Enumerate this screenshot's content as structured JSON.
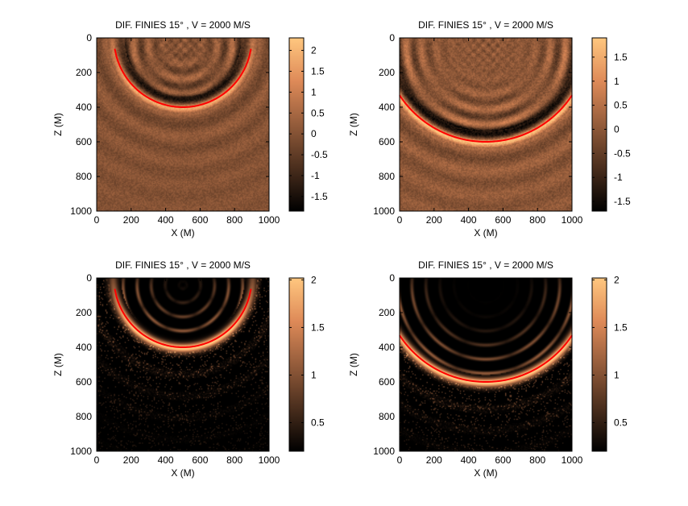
{
  "figure": {
    "background": "#ffffff",
    "colormap": "copper",
    "colormap_stops": [
      "#000000",
      "#4a2e1d",
      "#945c3b",
      "#de8a58",
      "#ffc77f"
    ],
    "curve_color": "#ff0000"
  },
  "chart_data": [
    {
      "type": "heatmap",
      "title": "DIF. FINIES 15° , V = 2000 M/S",
      "xlabel": "X (M)",
      "ylabel": "Z (M)",
      "xlim": [
        0,
        1000
      ],
      "ylim": [
        0,
        1000
      ],
      "y_reversed": true,
      "xticks": [
        "0",
        "200",
        "400",
        "600",
        "800",
        "1000"
      ],
      "yticks": [
        "0",
        "200",
        "400",
        "600",
        "800",
        "1000"
      ],
      "colorbar": {
        "range": [
          -1.85,
          2.3
        ],
        "ticks": [
          "-1.5",
          "-1",
          "-0.5",
          "0",
          "0.5",
          "1",
          "1.5",
          "2"
        ],
        "tick_values": [
          -1.5,
          -1,
          -0.5,
          0,
          0.5,
          1,
          1.5,
          2
        ]
      },
      "field": {
        "mode": "signed",
        "front_radius": 400,
        "source": [
          500,
          40
        ]
      },
      "curve": {
        "center": [
          500,
          0
        ],
        "radius": 400,
        "x_range": [
          105,
          895
        ]
      }
    },
    {
      "type": "heatmap",
      "title": "DIF. FINIES 15° , V = 2000 M/S",
      "xlabel": "X (M)",
      "ylabel": "Z (M)",
      "xlim": [
        0,
        1000
      ],
      "ylim": [
        0,
        1000
      ],
      "y_reversed": true,
      "xticks": [
        "0",
        "200",
        "400",
        "600",
        "800",
        "1000"
      ],
      "yticks": [
        "0",
        "200",
        "400",
        "600",
        "800",
        "1000"
      ],
      "colorbar": {
        "range": [
          -1.7,
          1.9
        ],
        "ticks": [
          "-1.5",
          "-1",
          "-0.5",
          "0",
          "0.5",
          "1",
          "1.5"
        ],
        "tick_values": [
          -1.5,
          -1,
          -0.5,
          0,
          0.5,
          1,
          1.5
        ]
      },
      "field": {
        "mode": "signed",
        "front_radius": 600,
        "source": [
          500,
          40
        ]
      },
      "curve": {
        "center": [
          500,
          0
        ],
        "radius": 600,
        "x_range": [
          0,
          1000
        ]
      }
    },
    {
      "type": "heatmap",
      "title": "DIF. FINIES 15° , V = 2000 M/S",
      "xlabel": "X (M)",
      "ylabel": "Z (M)",
      "xlim": [
        0,
        1000
      ],
      "ylim": [
        0,
        1000
      ],
      "y_reversed": true,
      "xticks": [
        "0",
        "200",
        "400",
        "600",
        "800",
        "1000"
      ],
      "yticks": [
        "0",
        "200",
        "400",
        "600",
        "800",
        "1000"
      ],
      "colorbar": {
        "range": [
          0.2,
          2.02
        ],
        "ticks": [
          "0.5",
          "1",
          "1.5",
          "2"
        ],
        "tick_values": [
          0.5,
          1,
          1.5,
          2
        ]
      },
      "field": {
        "mode": "envelope",
        "front_radius": 400,
        "source": [
          500,
          40
        ]
      },
      "curve": {
        "center": [
          500,
          0
        ],
        "radius": 400,
        "x_range": [
          105,
          895
        ]
      }
    },
    {
      "type": "heatmap",
      "title": "DIF. FINIES 15° , V = 2000 M/S",
      "xlabel": "X (M)",
      "ylabel": "Z (M)",
      "xlim": [
        0,
        1000
      ],
      "ylim": [
        0,
        1000
      ],
      "y_reversed": true,
      "xticks": [
        "0",
        "200",
        "400",
        "600",
        "800",
        "1000"
      ],
      "yticks": [
        "0",
        "200",
        "400",
        "600",
        "800",
        "1000"
      ],
      "colorbar": {
        "range": [
          0.2,
          2.02
        ],
        "ticks": [
          "0.5",
          "1",
          "1.5",
          "2"
        ],
        "tick_values": [
          0.5,
          1,
          1.5,
          2
        ]
      },
      "field": {
        "mode": "envelope",
        "front_radius": 600,
        "source": [
          500,
          40
        ]
      },
      "curve": {
        "center": [
          500,
          0
        ],
        "radius": 600,
        "x_range": [
          0,
          1000
        ]
      }
    }
  ]
}
